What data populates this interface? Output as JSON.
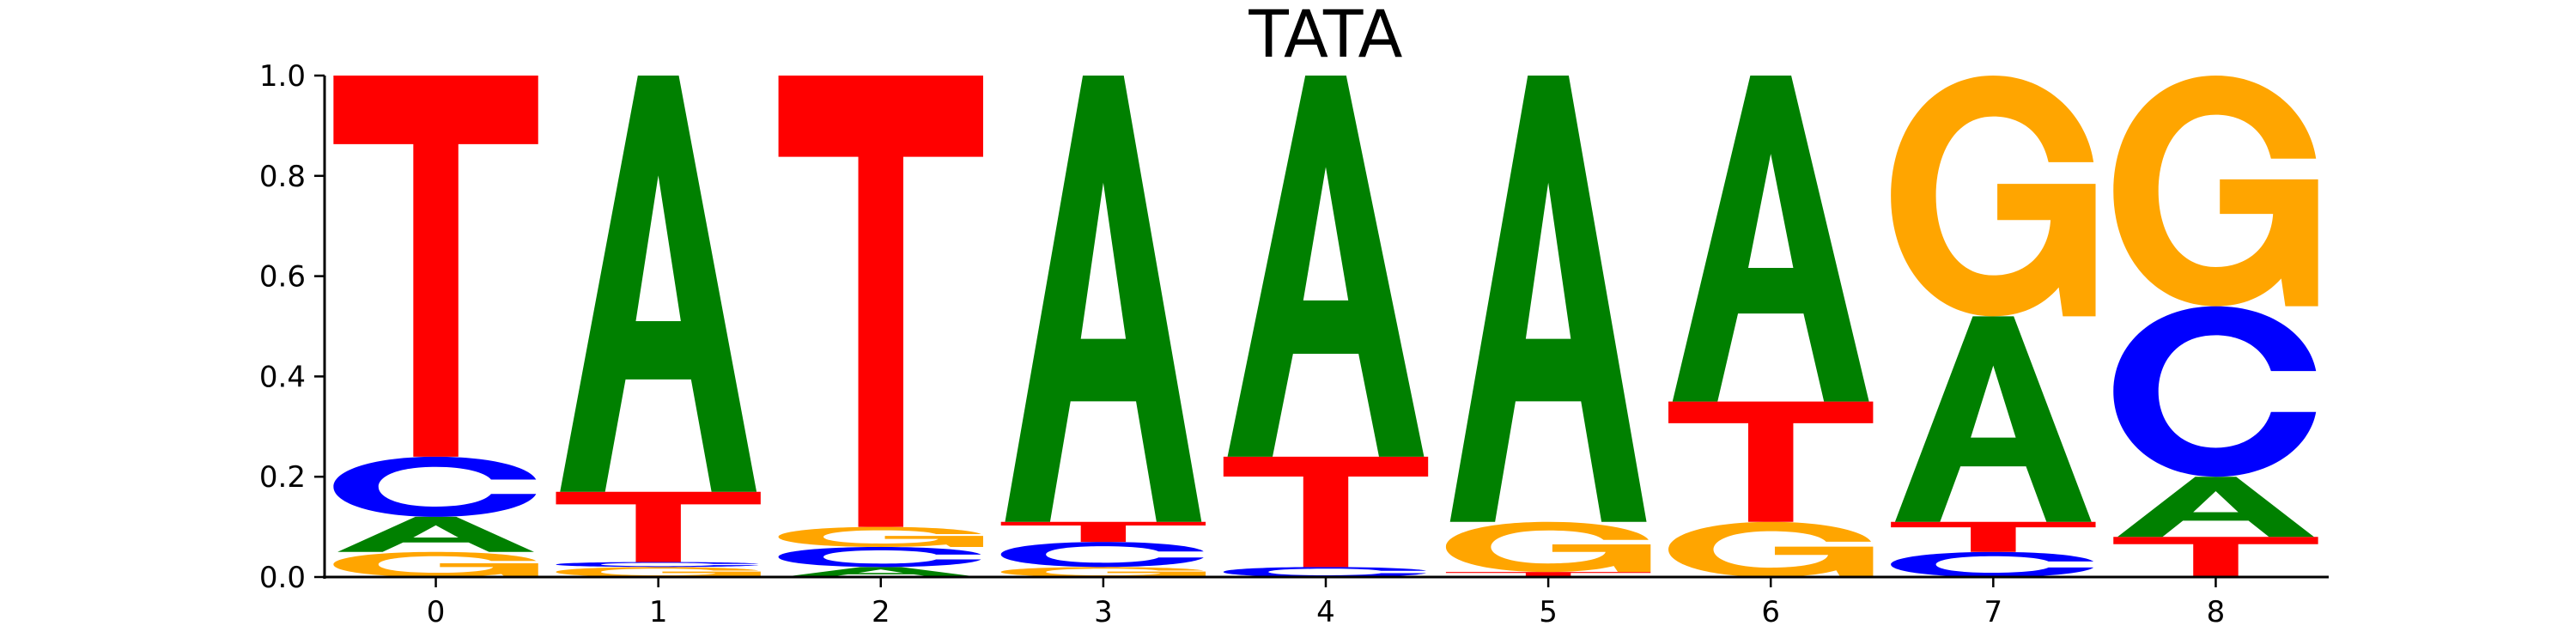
{
  "chart_data": {
    "type": "sequence-logo",
    "title": "TATA",
    "xlabel": "",
    "ylabel": "",
    "ylim": [
      0,
      1.0
    ],
    "y_ticks": [
      0.0,
      0.2,
      0.4,
      0.6,
      0.8,
      1.0
    ],
    "y_tick_labels": [
      "0.0",
      "0.2",
      "0.4",
      "0.6",
      "0.8",
      "1.0"
    ],
    "positions": [
      0,
      1,
      2,
      3,
      4,
      5,
      6,
      7,
      8
    ],
    "x_tick_labels": [
      "0",
      "1",
      "2",
      "3",
      "4",
      "5",
      "6",
      "7",
      "8"
    ],
    "colors": {
      "A": "#008000",
      "C": "#0000ff",
      "G": "#ffa500",
      "T": "#ff0000"
    },
    "stacks": [
      [
        {
          "base": "G",
          "value": 0.05
        },
        {
          "base": "A",
          "value": 0.07
        },
        {
          "base": "C",
          "value": 0.12
        },
        {
          "base": "T",
          "value": 0.76
        }
      ],
      [
        {
          "base": "G",
          "value": 0.02
        },
        {
          "base": "C",
          "value": 0.01
        },
        {
          "base": "T",
          "value": 0.14
        },
        {
          "base": "A",
          "value": 0.83
        }
      ],
      [
        {
          "base": "A",
          "value": 0.02
        },
        {
          "base": "C",
          "value": 0.04
        },
        {
          "base": "G",
          "value": 0.04
        },
        {
          "base": "T",
          "value": 0.9
        }
      ],
      [
        {
          "base": "G",
          "value": 0.02
        },
        {
          "base": "C",
          "value": 0.05
        },
        {
          "base": "T",
          "value": 0.04
        },
        {
          "base": "A",
          "value": 0.89
        }
      ],
      [
        {
          "base": "C",
          "value": 0.02
        },
        {
          "base": "T",
          "value": 0.22
        },
        {
          "base": "A",
          "value": 0.76
        }
      ],
      [
        {
          "base": "T",
          "value": 0.01
        },
        {
          "base": "G",
          "value": 0.1
        },
        {
          "base": "A",
          "value": 0.89
        }
      ],
      [
        {
          "base": "G",
          "value": 0.11
        },
        {
          "base": "T",
          "value": 0.24
        },
        {
          "base": "A",
          "value": 0.65
        }
      ],
      [
        {
          "base": "C",
          "value": 0.05
        },
        {
          "base": "T",
          "value": 0.06
        },
        {
          "base": "A",
          "value": 0.41
        },
        {
          "base": "G",
          "value": 0.48
        }
      ],
      [
        {
          "base": "T",
          "value": 0.08
        },
        {
          "base": "A",
          "value": 0.12
        },
        {
          "base": "C",
          "value": 0.34
        },
        {
          "base": "G",
          "value": 0.46
        }
      ]
    ]
  }
}
